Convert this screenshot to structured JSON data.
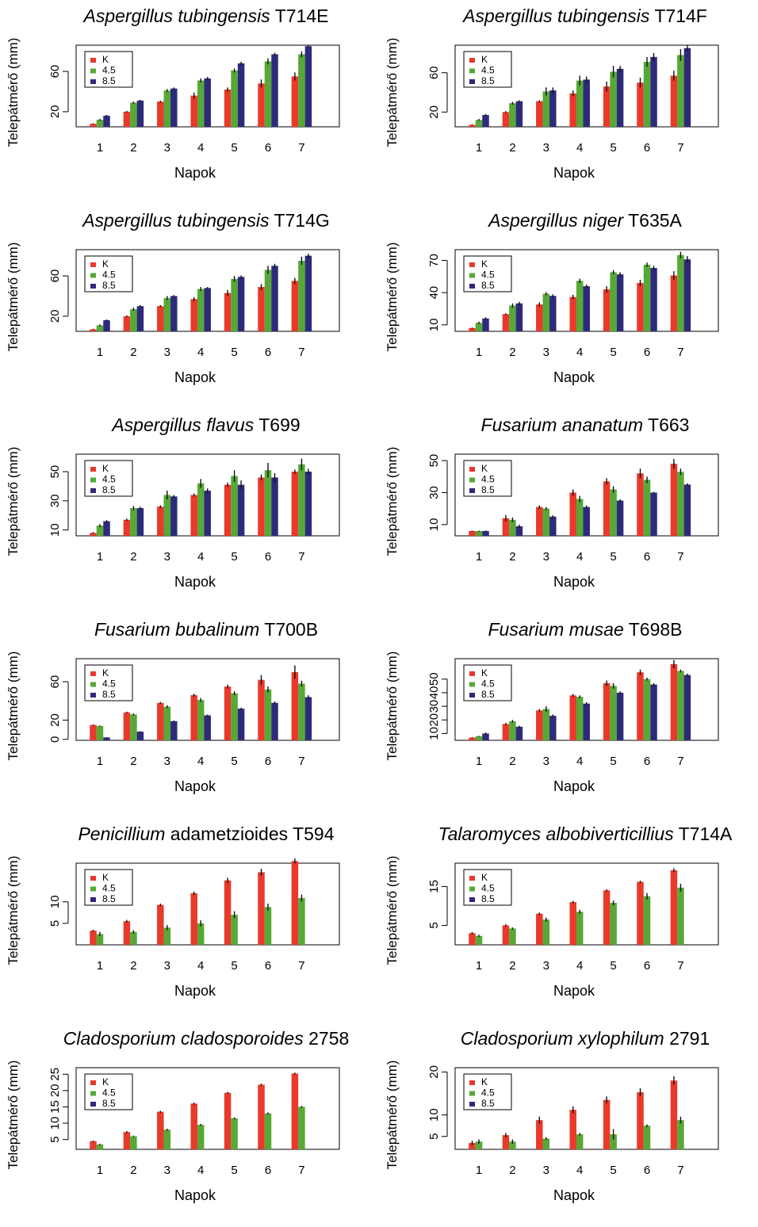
{
  "colors": {
    "K": "#e8392b",
    "4.5": "#56a837",
    "8.5": "#2e2a7a",
    "axis": "#000000"
  },
  "common": {
    "xlabel": "Napok",
    "ylabel": "Telepátmérő (mm)",
    "legend": [
      "K",
      "4.5",
      "8.5"
    ],
    "categories": [
      "1",
      "2",
      "3",
      "4",
      "5",
      "6",
      "7"
    ]
  },
  "chart_data": [
    {
      "type": "bar",
      "title_italic": "Aspergillus tubingensis",
      "title_rest": " T714E",
      "xlabel": "Napok",
      "ylabel": "Telepátmérő (mm)",
      "legend_position": "top-left",
      "categories": [
        "1",
        "2",
        "3",
        "4",
        "5",
        "6",
        "7"
      ],
      "ylim": [
        5,
        86
      ],
      "yticks": [
        20,
        60
      ],
      "series": [
        {
          "name": "K",
          "values": [
            8,
            20,
            30,
            36,
            42,
            48,
            55
          ],
          "err": [
            0.5,
            0.8,
            1,
            3,
            2,
            4,
            4
          ]
        },
        {
          "name": "4.5",
          "values": [
            12,
            29,
            41,
            51,
            61,
            70,
            77
          ],
          "err": [
            0.8,
            1,
            1.5,
            2,
            2,
            3,
            3
          ]
        },
        {
          "name": "8.5",
          "values": [
            16,
            31,
            43,
            53,
            68,
            77,
            85
          ],
          "err": [
            0.8,
            0.8,
            1,
            1.5,
            1.5,
            1.5,
            1
          ]
        }
      ]
    },
    {
      "type": "bar",
      "title_italic": "Aspergillus tubingensis",
      "title_rest": " T714F",
      "xlabel": "Napok",
      "ylabel": "Telepátmérő (mm)",
      "legend_position": "top-left",
      "categories": [
        "1",
        "2",
        "3",
        "4",
        "5",
        "6",
        "7"
      ],
      "ylim": [
        5,
        88
      ],
      "yticks": [
        20,
        60
      ],
      "series": [
        {
          "name": "K",
          "values": [
            7,
            20,
            31,
            39,
            46,
            50,
            57
          ],
          "err": [
            0.5,
            1,
            1,
            3,
            5,
            5,
            5
          ]
        },
        {
          "name": "4.5",
          "values": [
            12,
            29,
            41,
            52,
            61,
            71,
            78
          ],
          "err": [
            1,
            1.5,
            4,
            5,
            6,
            5,
            6
          ]
        },
        {
          "name": "8.5",
          "values": [
            17,
            31,
            42,
            53,
            64,
            76,
            85
          ],
          "err": [
            1,
            1,
            3,
            3,
            3,
            4,
            3
          ]
        }
      ]
    },
    {
      "type": "bar",
      "title_italic": "Aspergillus tubingensis",
      "title_rest": " T714G",
      "xlabel": "Napok",
      "ylabel": "Telepátmérő (mm)",
      "legend_position": "top-left",
      "categories": [
        "1",
        "2",
        "3",
        "4",
        "5",
        "6",
        "7"
      ],
      "ylim": [
        5,
        86
      ],
      "yticks": [
        20,
        60
      ],
      "series": [
        {
          "name": "K",
          "values": [
            7,
            20,
            30,
            37,
            43,
            49,
            55
          ],
          "err": [
            0.5,
            0.8,
            1,
            2,
            3,
            3,
            3
          ]
        },
        {
          "name": "4.5",
          "values": [
            11,
            27,
            38,
            47,
            57,
            66,
            75
          ],
          "err": [
            0.8,
            1.5,
            2,
            2,
            3,
            4,
            4
          ]
        },
        {
          "name": "8.5",
          "values": [
            16,
            30,
            40,
            48,
            59,
            70,
            80
          ],
          "err": [
            0.8,
            1,
            1,
            1,
            1.5,
            2,
            2
          ]
        }
      ]
    },
    {
      "type": "bar",
      "title_italic": "Aspergillus niger",
      "title_rest": " T635A",
      "xlabel": "Napok",
      "ylabel": "Telepátmérő (mm)",
      "legend_position": "top-left",
      "categories": [
        "1",
        "2",
        "3",
        "4",
        "5",
        "6",
        "7"
      ],
      "ylim": [
        4,
        80
      ],
      "yticks": [
        10,
        40,
        70
      ],
      "series": [
        {
          "name": "K",
          "values": [
            7,
            20,
            29,
            36,
            43,
            49,
            56
          ],
          "err": [
            0.5,
            0.8,
            2,
            2,
            3,
            3,
            4
          ]
        },
        {
          "name": "4.5",
          "values": [
            12,
            28,
            39,
            51,
            59,
            66,
            75
          ],
          "err": [
            1,
            2,
            1.5,
            2,
            2,
            2,
            3
          ]
        },
        {
          "name": "8.5",
          "values": [
            16,
            30,
            37,
            46,
            57,
            63,
            71
          ],
          "err": [
            1,
            1.5,
            1.5,
            1.5,
            2,
            2,
            3
          ]
        }
      ]
    },
    {
      "type": "bar",
      "title_italic": "Aspergillus flavus",
      "title_rest": " T699",
      "xlabel": "Napok",
      "ylabel": "Telepátmérő (mm)",
      "legend_position": "top-left",
      "categories": [
        "1",
        "2",
        "3",
        "4",
        "5",
        "6",
        "7"
      ],
      "ylim": [
        6,
        62
      ],
      "yticks": [
        10,
        30,
        50
      ],
      "series": [
        {
          "name": "K",
          "values": [
            8,
            17,
            26,
            34,
            41,
            46,
            50
          ],
          "err": [
            0.5,
            0.8,
            1,
            1,
            1.5,
            2,
            1.5
          ]
        },
        {
          "name": "4.5",
          "values": [
            13,
            25,
            34,
            42,
            47,
            51,
            55
          ],
          "err": [
            1,
            1.5,
            3,
            3,
            4,
            5,
            4
          ]
        },
        {
          "name": "8.5",
          "values": [
            16,
            25,
            33,
            37,
            41,
            46,
            50
          ],
          "err": [
            0.8,
            1,
            1,
            1.5,
            3,
            3,
            2
          ]
        }
      ]
    },
    {
      "type": "bar",
      "title_italic": "Fusarium ananatum",
      "title_rest": " T663",
      "xlabel": "Napok",
      "ylabel": "Telepátmérő (mm)",
      "legend_position": "top-left",
      "categories": [
        "1",
        "2",
        "3",
        "4",
        "5",
        "6",
        "7"
      ],
      "ylim": [
        3,
        54
      ],
      "yticks": [
        10,
        30,
        50
      ],
      "series": [
        {
          "name": "K",
          "values": [
            6,
            14,
            21,
            30,
            37,
            42,
            48
          ],
          "err": [
            0.3,
            2,
            1,
            2,
            2,
            3,
            3
          ]
        },
        {
          "name": "4.5",
          "values": [
            6,
            13,
            20,
            26,
            32,
            38,
            43
          ],
          "err": [
            0.3,
            1.5,
            1,
            2,
            2,
            2,
            2
          ]
        },
        {
          "name": "8.5",
          "values": [
            6,
            9,
            15,
            21,
            25,
            30,
            35
          ],
          "err": [
            0.3,
            1,
            0.8,
            1,
            0.8,
            0.5,
            0.8
          ]
        }
      ]
    },
    {
      "type": "bar",
      "title_italic": "Fusarium bubalinum",
      "title_rest": " T700B",
      "xlabel": "Napok",
      "ylabel": "Telepátmérő (mm)",
      "legend_position": "top-left",
      "categories": [
        "1",
        "2",
        "3",
        "4",
        "5",
        "6",
        "7"
      ],
      "ylim": [
        -1,
        84
      ],
      "yticks": [
        0,
        20,
        60
      ],
      "series": [
        {
          "name": "K",
          "values": [
            15,
            28,
            38,
            46,
            55,
            62,
            70
          ],
          "err": [
            0.5,
            0.8,
            1,
            1.5,
            2,
            5,
            7
          ]
        },
        {
          "name": "4.5",
          "values": [
            14,
            26,
            34,
            41,
            48,
            52,
            58
          ],
          "err": [
            0.5,
            1,
            1.5,
            2,
            2,
            3,
            3
          ]
        },
        {
          "name": "8.5",
          "values": [
            2,
            8,
            19,
            25,
            32,
            38,
            44
          ],
          "err": [
            0.3,
            0.5,
            0.5,
            0.8,
            1,
            1.5,
            2
          ]
        }
      ]
    },
    {
      "type": "bar",
      "title_italic": "Fusarium musae",
      "title_rest": " T698B",
      "xlabel": "Napok",
      "ylabel": "Telepátmérő (mm)",
      "legend_position": "top-left",
      "categories": [
        "1",
        "2",
        "3",
        "4",
        "5",
        "6",
        "7"
      ],
      "ylim": [
        5,
        65
      ],
      "yticks": [
        10,
        20,
        30,
        40,
        50
      ],
      "series": [
        {
          "name": "K",
          "values": [
            7,
            17,
            27,
            38,
            47,
            55,
            61
          ],
          "err": [
            0.3,
            0.8,
            1,
            1,
            2,
            2,
            3
          ]
        },
        {
          "name": "4.5",
          "values": [
            8,
            19,
            28,
            37,
            45,
            50,
            56
          ],
          "err": [
            0.3,
            1,
            2,
            1,
            2,
            1,
            1
          ]
        },
        {
          "name": "8.5",
          "values": [
            10,
            15,
            23,
            32,
            40,
            46,
            53
          ],
          "err": [
            0.8,
            0.8,
            1,
            1,
            1,
            1,
            1
          ]
        }
      ]
    },
    {
      "type": "bar",
      "title_italic": "Penicillium",
      "title_rest": " adametzioides T594",
      "xlabel": "Napok",
      "ylabel": "Telepátmérő (mm)",
      "legend_position": "top-left",
      "categories": [
        "1",
        "2",
        "3",
        "4",
        "5",
        "6",
        "7"
      ],
      "ylim": [
        0,
        19
      ],
      "yticks": [
        5,
        10
      ],
      "series": [
        {
          "name": "K",
          "values": [
            3.3,
            5.5,
            9.3,
            12.0,
            15.0,
            16.9,
            19.5
          ],
          "err": [
            0.2,
            0.3,
            0.3,
            0.4,
            0.6,
            0.8,
            0.6
          ]
        },
        {
          "name": "4.5",
          "values": [
            2.5,
            3.0,
            4.0,
            5.0,
            7.0,
            8.8,
            10.9
          ],
          "err": [
            0.5,
            0.4,
            0.6,
            0.7,
            0.8,
            0.8,
            0.8
          ]
        },
        {
          "name": "8.5",
          "values": [
            0,
            0,
            0,
            0,
            0,
            0,
            0
          ],
          "err": [
            0,
            0,
            0,
            0,
            0,
            0,
            0
          ]
        }
      ]
    },
    {
      "type": "bar",
      "title_italic": "Talaromyces albobiverticillius",
      "title_rest": " T714A",
      "xlabel": "Napok",
      "ylabel": "Telepátmérő (mm)",
      "legend_position": "top-left",
      "categories": [
        "1",
        "2",
        "3",
        "4",
        "5",
        "6",
        "7"
      ],
      "ylim": [
        0,
        21
      ],
      "yticks": [
        5,
        15
      ],
      "series": [
        {
          "name": "K",
          "values": [
            3,
            5,
            8,
            11,
            14,
            16.2,
            19.2
          ],
          "err": [
            0.3,
            0.3,
            0.3,
            0.3,
            0.3,
            0.3,
            0.5
          ]
        },
        {
          "name": "4.5",
          "values": [
            2.3,
            4.2,
            6.5,
            8.5,
            10.8,
            12.5,
            14.7
          ],
          "err": [
            0.3,
            0.3,
            0.5,
            0.5,
            0.6,
            0.8,
            1
          ]
        },
        {
          "name": "8.5",
          "values": [
            0,
            0,
            0,
            0,
            0,
            0,
            0
          ],
          "err": [
            0,
            0,
            0,
            0,
            0,
            0,
            0
          ]
        }
      ]
    },
    {
      "type": "bar",
      "title_italic": "Cladosporium cladosporoides",
      "title_rest": " 2758",
      "xlabel": "Napok",
      "ylabel": "Telepátmérő (mm)",
      "legend_position": "top-left",
      "categories": [
        "1",
        "2",
        "3",
        "4",
        "5",
        "6",
        "7"
      ],
      "ylim": [
        2,
        27
      ],
      "yticks": [
        5,
        10,
        15,
        20,
        25
      ],
      "series": [
        {
          "name": "K",
          "values": [
            4.5,
            7.3,
            13.5,
            16.0,
            19.3,
            21.8,
            25.2
          ],
          "err": [
            0.2,
            0.3,
            0.3,
            0.3,
            0.3,
            0.3,
            0.3
          ]
        },
        {
          "name": "4.5",
          "values": [
            3.5,
            6.0,
            8.0,
            9.5,
            11.5,
            13.0,
            15.0
          ],
          "err": [
            0.2,
            0.2,
            0.3,
            0.3,
            0.3,
            0.3,
            0.3
          ]
        },
        {
          "name": "8.5",
          "values": [
            0,
            0,
            0,
            0,
            0,
            0,
            0
          ],
          "err": [
            0,
            0,
            0,
            0,
            0,
            0,
            0
          ]
        }
      ]
    },
    {
      "type": "bar",
      "title_italic": "Cladosporium xylophilum",
      "title_rest": " 2791",
      "xlabel": "Napok",
      "ylabel": "Telepátmérő (mm)",
      "legend_position": "top-left",
      "categories": [
        "1",
        "2",
        "3",
        "4",
        "5",
        "6",
        "7"
      ],
      "ylim": [
        2,
        21
      ],
      "yticks": [
        5,
        10,
        20
      ],
      "series": [
        {
          "name": "K",
          "values": [
            3.5,
            5.3,
            8.8,
            11.2,
            13.5,
            15.3,
            18
          ],
          "err": [
            0.5,
            0.5,
            0.8,
            0.8,
            0.8,
            0.9,
            1
          ]
        },
        {
          "name": "4.5",
          "values": [
            3.8,
            3.8,
            4.5,
            5.5,
            5.5,
            7.5,
            8.8
          ],
          "err": [
            0.5,
            0.5,
            0.3,
            0.3,
            1.2,
            0.3,
            0.8
          ]
        },
        {
          "name": "8.5",
          "values": [
            0,
            0,
            0,
            0,
            0,
            0,
            0
          ],
          "err": [
            0,
            0,
            0,
            0,
            0,
            0,
            0
          ]
        }
      ]
    }
  ]
}
